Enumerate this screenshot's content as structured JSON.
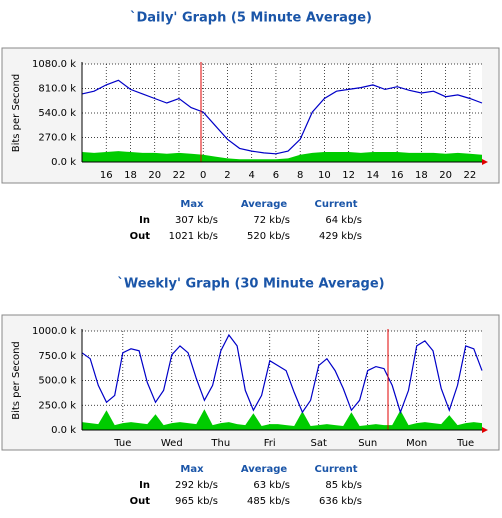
{
  "chart_data": [
    {
      "type": "line",
      "title": "`Daily' Graph (5 Minute Average)",
      "ylabel": "Bits per Second",
      "categories": [
        null,
        null,
        "16",
        null,
        "18",
        null,
        "20",
        null,
        "22",
        null,
        "0",
        null,
        "2",
        null,
        "4",
        null,
        "6",
        null,
        "8",
        null,
        "10",
        null,
        "12",
        null,
        "14",
        null,
        "16",
        null,
        "18",
        null,
        "20",
        null,
        "22",
        null
      ],
      "ylim": [
        0,
        1080
      ],
      "yticks": [
        {
          "value": 0,
          "label": "0.0 k"
        },
        {
          "value": 270,
          "label": "270.0 k"
        },
        {
          "value": 540,
          "label": "540.0 k"
        },
        {
          "value": 810,
          "label": "810.0 k"
        },
        {
          "value": 1080,
          "label": "1080.0 k"
        }
      ],
      "grid": true,
      "series": [
        {
          "name": "In",
          "color": "#00cc00",
          "style": "area",
          "values": [
            110,
            100,
            110,
            120,
            110,
            100,
            100,
            90,
            100,
            90,
            80,
            60,
            40,
            30,
            30,
            30,
            30,
            40,
            80,
            100,
            110,
            110,
            110,
            100,
            110,
            110,
            110,
            100,
            100,
            100,
            90,
            100,
            90,
            80
          ]
        },
        {
          "name": "Out",
          "color": "#0000c8",
          "style": "line",
          "values": [
            750,
            780,
            850,
            900,
            800,
            750,
            700,
            650,
            700,
            600,
            550,
            400,
            250,
            150,
            120,
            100,
            90,
            120,
            250,
            550,
            700,
            780,
            800,
            820,
            850,
            800,
            830,
            790,
            760,
            780,
            720,
            740,
            700,
            650
          ]
        }
      ],
      "stats": {
        "columns": [
          "Max",
          "Average",
          "Current"
        ],
        "rows": [
          {
            "name": "In",
            "values": [
              "307 kb/s",
              "72 kb/s",
              "64 kb/s"
            ]
          },
          {
            "name": "Out",
            "values": [
              "1021 kb/s",
              "520 kb/s",
              "429 kb/s"
            ]
          }
        ]
      }
    },
    {
      "type": "line",
      "title": "`Weekly' Graph (30 Minute Average)",
      "ylabel": "Bits per Second",
      "categories": [
        null,
        null,
        null,
        null,
        null,
        "Tue",
        null,
        null,
        null,
        null,
        null,
        "Wed",
        null,
        null,
        null,
        null,
        null,
        "Thu",
        null,
        null,
        null,
        null,
        null,
        "Fri",
        null,
        null,
        null,
        null,
        null,
        "Sat",
        null,
        null,
        null,
        null,
        null,
        "Sun",
        null,
        null,
        null,
        null,
        null,
        "Mon",
        null,
        null,
        null,
        null,
        null,
        "Tue",
        null,
        null
      ],
      "ylim": [
        0,
        1000
      ],
      "yticks": [
        {
          "value": 0,
          "label": "0.0 k"
        },
        {
          "value": 250,
          "label": "250.0 k"
        },
        {
          "value": 500,
          "label": "500.0 k"
        },
        {
          "value": 750,
          "label": "750.0 k"
        },
        {
          "value": 1000,
          "label": "1000.0 k"
        }
      ],
      "grid": true,
      "series": [
        {
          "name": "In",
          "color": "#00cc00",
          "style": "area",
          "values": [
            80,
            70,
            60,
            200,
            50,
            70,
            80,
            70,
            60,
            160,
            50,
            70,
            80,
            70,
            60,
            210,
            50,
            70,
            80,
            60,
            50,
            170,
            40,
            60,
            60,
            50,
            40,
            190,
            40,
            50,
            60,
            50,
            40,
            180,
            40,
            50,
            60,
            50,
            50,
            200,
            50,
            70,
            80,
            70,
            60,
            150,
            50,
            70,
            80,
            70
          ]
        },
        {
          "name": "Out",
          "color": "#0000c8",
          "style": "line",
          "values": [
            780,
            720,
            450,
            280,
            350,
            780,
            820,
            800,
            480,
            280,
            400,
            760,
            850,
            780,
            520,
            300,
            450,
            800,
            960,
            850,
            400,
            200,
            350,
            700,
            650,
            600,
            380,
            180,
            300,
            650,
            720,
            600,
            420,
            200,
            300,
            600,
            640,
            620,
            450,
            180,
            400,
            850,
            900,
            800,
            420,
            200,
            450,
            850,
            820,
            600
          ]
        }
      ],
      "stats": {
        "columns": [
          "Max",
          "Average",
          "Current"
        ],
        "rows": [
          {
            "name": "In",
            "values": [
              "292 kb/s",
              "63 kb/s",
              "85 kb/s"
            ]
          },
          {
            "name": "Out",
            "values": [
              "965 kb/s",
              "485 kb/s",
              "636 kb/s"
            ]
          }
        ]
      }
    }
  ]
}
